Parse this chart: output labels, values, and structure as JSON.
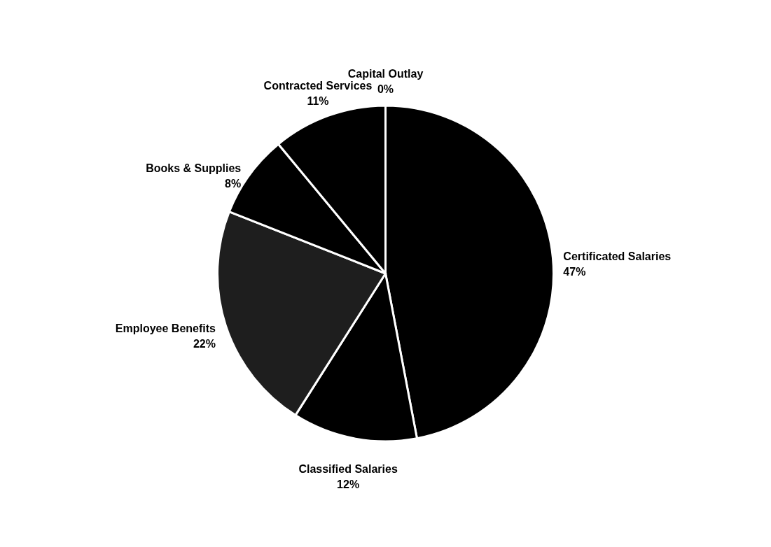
{
  "chart_data": {
    "type": "pie",
    "categories": [
      "Certificated Salaries",
      "Classified Salaries",
      "Employee Benefits",
      "Books & Supplies",
      "Contracted Services",
      "Capital Outlay"
    ],
    "values": [
      47,
      12,
      22,
      8,
      11,
      0
    ],
    "value_labels": [
      "47%",
      "12%",
      "22%",
      "8%",
      "11%",
      "0%"
    ],
    "colors": [
      "#000000",
      "#000000",
      "#1e1e1e",
      "#000000",
      "#000000",
      "#000000"
    ]
  }
}
